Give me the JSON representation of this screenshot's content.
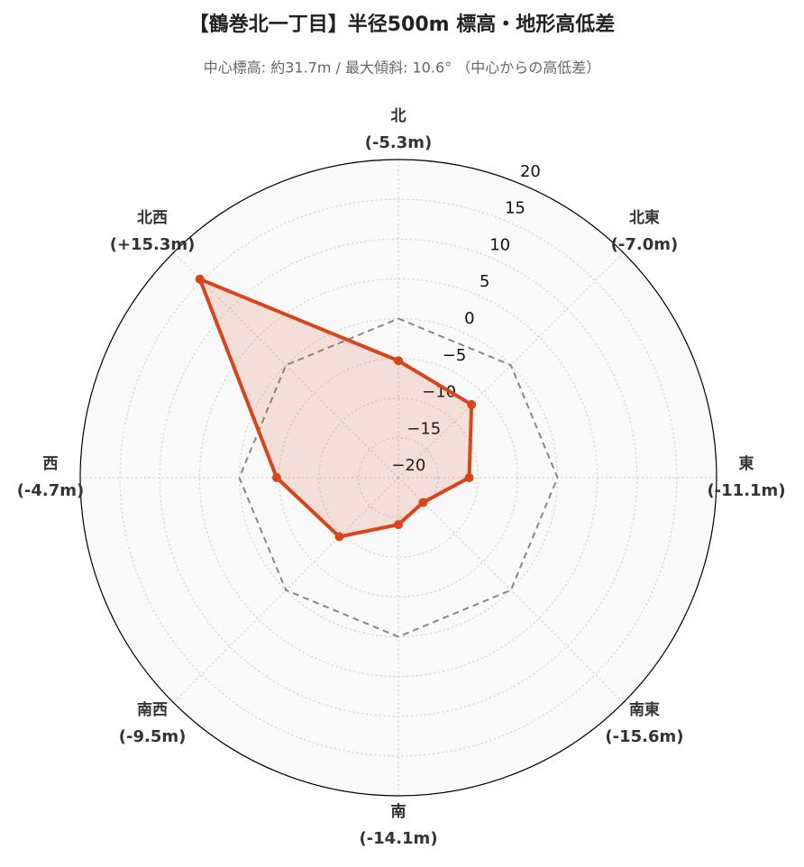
{
  "chart_data": {
    "type": "radar",
    "title": "【鶴巻北一丁目】半径500m 標高・地形高低差",
    "subtitle": "中心標高: 約31.7m / 最大傾斜: 10.6° （中心からの高低差）",
    "categories": [
      "北",
      "北東",
      "東",
      "南東",
      "南",
      "南西",
      "西",
      "北西"
    ],
    "series": [
      {
        "color": "#d9441a",
        "values": [
          -5.3,
          -7.0,
          -11.1,
          -15.6,
          -14.1,
          -9.5,
          -4.7,
          15.3
        ],
        "value_labels": [
          "(-5.3m)",
          "(-7.0m)",
          "(-11.1m)",
          "(-15.6m)",
          "(-14.1m)",
          "(-9.5m)",
          "(-4.7m)",
          "(+15.3m)"
        ]
      }
    ],
    "ylim": [
      -20,
      20
    ],
    "yticks": [
      {
        "value": -20,
        "label": "−20"
      },
      {
        "value": -15,
        "label": "−15"
      },
      {
        "value": -10,
        "label": "−10"
      },
      {
        "value": -5,
        "label": "−5"
      },
      0,
      5,
      10,
      15,
      20
    ],
    "reference": 0,
    "grid": true
  }
}
